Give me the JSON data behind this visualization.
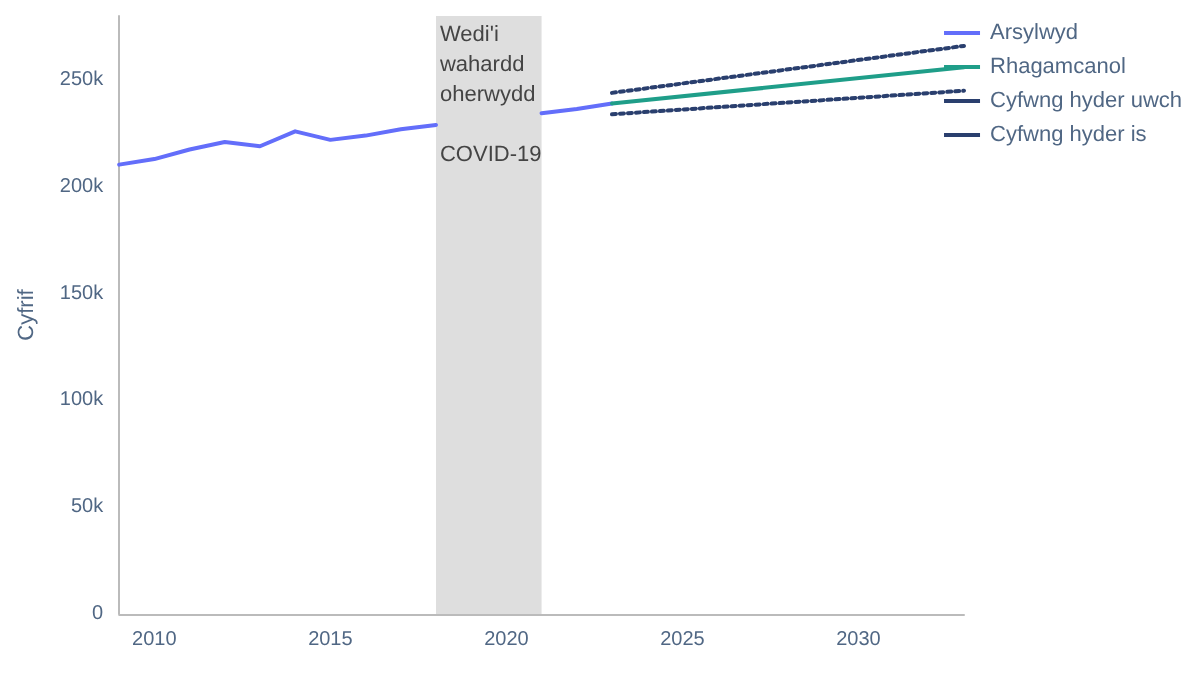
{
  "chart_data": {
    "type": "line",
    "ylabel": "Cyfrif",
    "xlim": [
      2009,
      2033
    ],
    "xticks": [
      2010,
      2015,
      2020,
      2025,
      2030
    ],
    "ylim": [
      0,
      280000
    ],
    "yticks": [
      {
        "value": 0,
        "label": "0"
      },
      {
        "value": 50000,
        "label": "50k"
      },
      {
        "value": 100000,
        "label": "100k"
      },
      {
        "value": 150000,
        "label": "150k"
      },
      {
        "value": 200000,
        "label": "200k"
      },
      {
        "value": 250000,
        "label": "250k"
      }
    ],
    "grid": false,
    "legend": "top right",
    "marker": "none",
    "bands": [
      {
        "axis": "x",
        "from": 2018,
        "to": 2021,
        "label": "Wedi'i wahardd oherwydd COVID-19",
        "color": "#dedede"
      }
    ],
    "series": [
      {
        "name": "Arsylwyd",
        "color": "#636efa",
        "line_style": "solid",
        "x": [
          2009,
          2010,
          2011,
          2012,
          2013,
          2014,
          2015,
          2016,
          2017,
          2018,
          2019,
          2020,
          2021,
          2022,
          2023
        ],
        "values": [
          210400,
          213000,
          217500,
          221000,
          219000,
          226000,
          222000,
          224000,
          227000,
          229000,
          null,
          null,
          234500,
          236500,
          239000
        ]
      },
      {
        "name": "Rhagamcanol",
        "color": "#1f9e89",
        "line_style": "solid",
        "x": [
          2023,
          2033
        ],
        "values": [
          239000,
          256000
        ]
      },
      {
        "name": "Cyfwng hyder uwch",
        "color": "#2a3f6e",
        "line_style": "dotted",
        "x": [
          2023,
          2033
        ],
        "values": [
          244000,
          266000
        ]
      },
      {
        "name": "Cyfwng hyder is",
        "color": "#2a3f6e",
        "line_style": "dotted",
        "x": [
          2023,
          2033
        ],
        "values": [
          234000,
          245000
        ]
      }
    ]
  }
}
